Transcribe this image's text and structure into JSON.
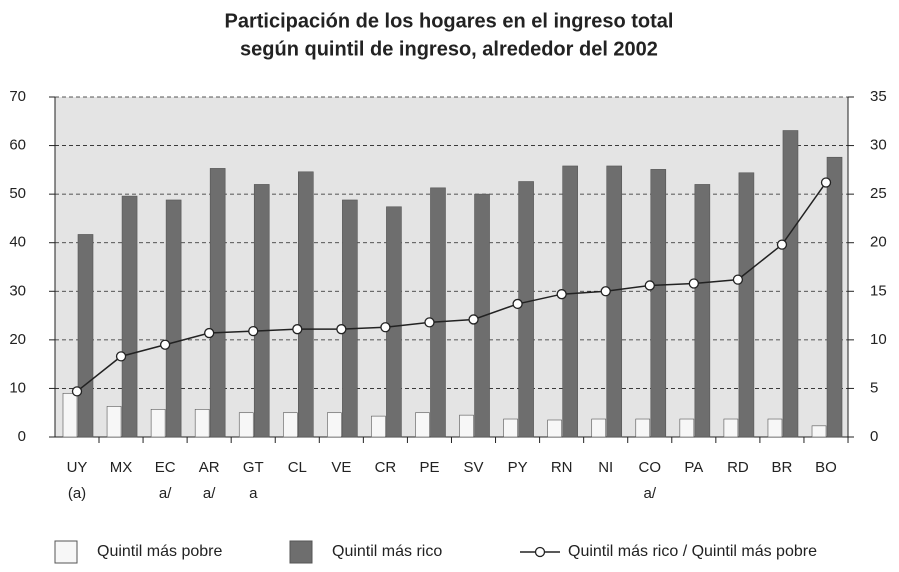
{
  "chart_data": {
    "type": "bar-line",
    "title": "Participación de los hogares en el ingreso total",
    "subtitle": "según quintil de ingreso, alrededor del 2002",
    "categories": [
      "UY",
      "MX",
      "EC",
      "AR",
      "GT",
      "CL",
      "VE",
      "CR",
      "PE",
      "SV",
      "PY",
      "RN",
      "NI",
      "CO",
      "PA",
      "RD",
      "BR",
      "BO"
    ],
    "category_notes": [
      "(a)",
      null,
      "a/",
      "a/",
      "a",
      null,
      null,
      null,
      null,
      null,
      null,
      null,
      null,
      "a/",
      null,
      null,
      null,
      null
    ],
    "series": [
      {
        "name": "Quintil más pobre",
        "color": "#f7f7f7",
        "kind": "bar",
        "values": [
          9,
          6.3,
          5.7,
          5.7,
          5,
          5,
          5,
          4.3,
          5,
          4.5,
          3.7,
          3.5,
          3.7,
          3.7,
          3.7,
          3.7,
          3.7,
          2.3
        ]
      },
      {
        "name": "Quintil más rico",
        "color": "#6e6e6e",
        "kind": "bar",
        "values": [
          41.7,
          49.6,
          48.8,
          55.3,
          52,
          54.6,
          48.8,
          47.4,
          51.3,
          50,
          52.6,
          55.8,
          55.8,
          55.1,
          52,
          54.4,
          63.1,
          57.6
        ]
      },
      {
        "name": "Quintil más rico / Quintil más pobre",
        "color": "#222222",
        "kind": "line",
        "axis": "y2",
        "values": [
          4.7,
          8.3,
          9.5,
          10.7,
          10.9,
          11.1,
          11.1,
          11.3,
          11.8,
          12.1,
          13.7,
          14.7,
          15,
          15.6,
          15.8,
          16.2,
          19.8,
          26.2
        ]
      }
    ],
    "ylim": [
      0,
      70
    ],
    "yticks": [
      0,
      10,
      20,
      30,
      40,
      50,
      60,
      70
    ],
    "y2lim": [
      0,
      35
    ],
    "y2ticks": [
      0,
      5,
      10,
      15,
      20,
      25,
      30,
      35
    ],
    "grid": true,
    "legend": "bottom"
  }
}
